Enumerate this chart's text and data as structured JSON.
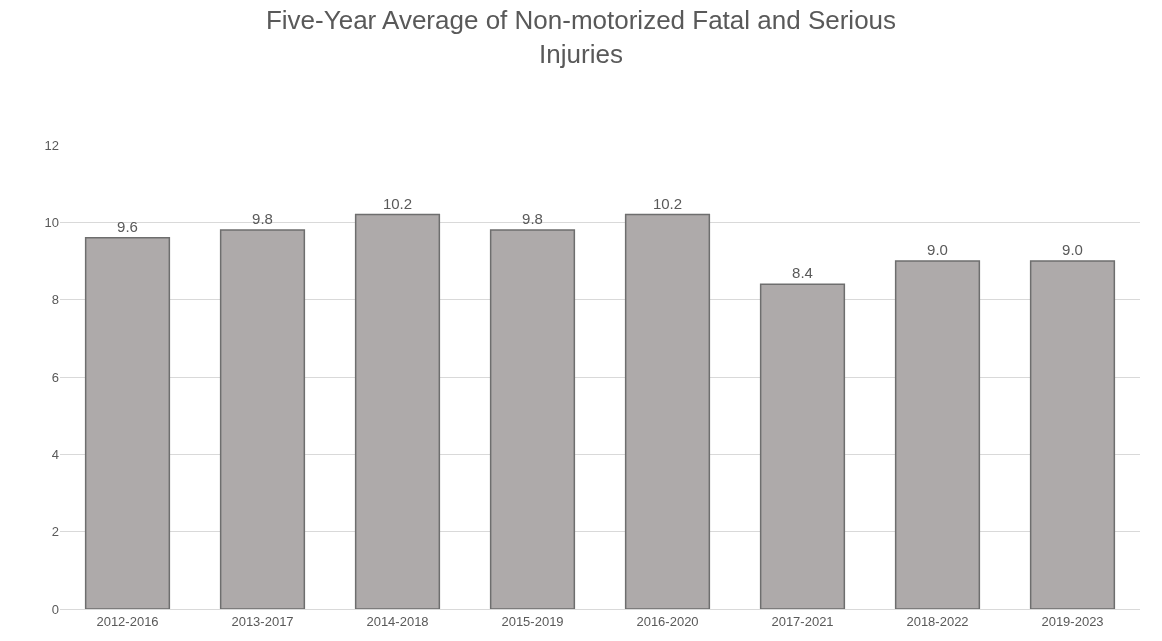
{
  "chart_data": {
    "type": "bar",
    "title": "Five-Year Average of Non-motorized Fatal and Serious Injuries",
    "categories": [
      "2012-2016",
      "2013-2017",
      "2014-2018",
      "2015-2019",
      "2016-2020",
      "2017-2021",
      "2018-2022",
      "2019-2023"
    ],
    "values": [
      9.6,
      9.8,
      10.2,
      9.8,
      10.2,
      8.4,
      9.0,
      9.0
    ],
    "value_labels": [
      "9.6",
      "9.8",
      "10.2",
      "9.8",
      "10.2",
      "8.4",
      "9.0",
      "9.0"
    ],
    "color": "#aeaaaa",
    "ylim": [
      0,
      12
    ],
    "yticks": [
      0,
      2,
      4,
      6,
      8,
      10,
      12
    ],
    "grid": "y"
  }
}
